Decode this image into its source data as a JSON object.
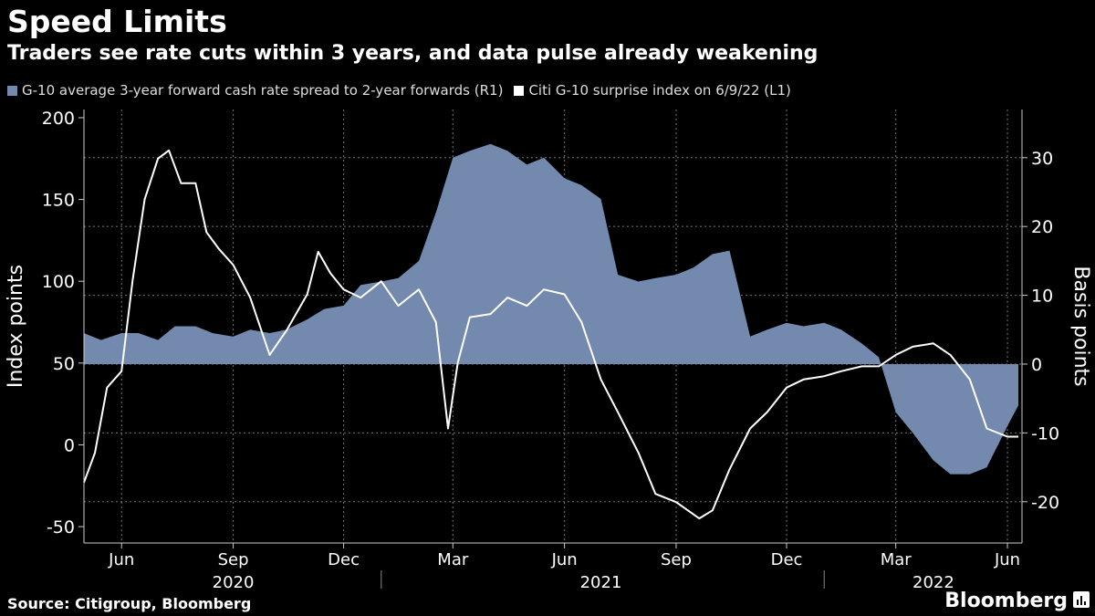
{
  "header": {
    "title": "Speed Limits",
    "subtitle": "Traders see rate cuts within 3 years, and data pulse already weakening"
  },
  "footer": {
    "source": "Source: Citigroup, Bloomberg",
    "brand": "Bloomberg"
  },
  "colors": {
    "area": "#7389ad",
    "line": "#ffffff",
    "grid": "#777777",
    "background": "#000000"
  },
  "chart_data": {
    "type": "area",
    "left_axis": {
      "label": "Index points",
      "range": [
        -60,
        205
      ],
      "ticks": [
        200,
        150,
        100,
        50,
        0,
        -50
      ]
    },
    "right_axis": {
      "label": "Basis points",
      "range": [
        -26,
        37
      ],
      "ticks": [
        30,
        20,
        10,
        0,
        -10,
        -20
      ]
    },
    "x_axis": {
      "range": [
        "2020-05-01",
        "2022-06-13"
      ],
      "month_ticks": [
        {
          "date": "2020-06-01",
          "label": "Jun"
        },
        {
          "date": "2020-09-01",
          "label": "Sep"
        },
        {
          "date": "2020-12-01",
          "label": "Dec"
        },
        {
          "date": "2021-03-01",
          "label": "Mar"
        },
        {
          "date": "2021-06-01",
          "label": "Jun"
        },
        {
          "date": "2021-09-01",
          "label": "Sep"
        },
        {
          "date": "2021-12-01",
          "label": "Dec"
        },
        {
          "date": "2022-03-01",
          "label": "Mar"
        },
        {
          "date": "2022-06-01",
          "label": "Jun"
        }
      ],
      "year_labels": [
        {
          "date": "2020-09-01",
          "label": "2020"
        },
        {
          "date": "2021-07-01",
          "label": "2021"
        },
        {
          "date": "2022-04-01",
          "label": "2022"
        }
      ],
      "year_dividers": [
        "2021-01-01",
        "2022-01-01"
      ]
    },
    "grid": true,
    "series": [
      {
        "name": "G-10 average 3-year forward cash rate spread to 2-year forwards (R1)",
        "axis": "right",
        "type": "area",
        "x": [
          "2020-05-01",
          "2020-05-15",
          "2020-06-01",
          "2020-06-15",
          "2020-07-01",
          "2020-07-15",
          "2020-08-01",
          "2020-08-15",
          "2020-09-01",
          "2020-09-15",
          "2020-10-01",
          "2020-10-15",
          "2020-11-01",
          "2020-11-15",
          "2020-12-01",
          "2020-12-15",
          "2021-01-01",
          "2021-01-15",
          "2021-02-01",
          "2021-02-15",
          "2021-03-01",
          "2021-03-15",
          "2021-04-01",
          "2021-04-15",
          "2021-05-01",
          "2021-05-15",
          "2021-06-01",
          "2021-06-15",
          "2021-07-01",
          "2021-07-15",
          "2021-08-01",
          "2021-08-15",
          "2021-09-01",
          "2021-09-15",
          "2021-10-01",
          "2021-10-15",
          "2021-11-01",
          "2021-11-15",
          "2021-12-01",
          "2021-12-15",
          "2022-01-01",
          "2022-01-15",
          "2022-02-01",
          "2022-02-15",
          "2022-03-01",
          "2022-03-15",
          "2022-04-01",
          "2022-04-15",
          "2022-05-01",
          "2022-05-15",
          "2022-06-01",
          "2022-06-10"
        ],
        "values": [
          4.5,
          3.5,
          4.5,
          4.5,
          3.5,
          5.5,
          5.5,
          4.5,
          4,
          5,
          4.5,
          5,
          6.5,
          8,
          8.5,
          11.5,
          12,
          12.5,
          15,
          22,
          30,
          31,
          32,
          31,
          29,
          30,
          27,
          26,
          24,
          13,
          12,
          12.5,
          13,
          14,
          16,
          16.5,
          4,
          5,
          6,
          5.5,
          6,
          5,
          3,
          1,
          -7,
          -10,
          -14,
          -16,
          -16,
          -15,
          -9,
          -6
        ]
      },
      {
        "name": "Citi G-10 surprise index on 6/9/22 (L1)",
        "axis": "left",
        "type": "line",
        "x": [
          "2020-05-01",
          "2020-05-10",
          "2020-05-20",
          "2020-06-01",
          "2020-06-10",
          "2020-06-20",
          "2020-07-01",
          "2020-07-10",
          "2020-07-20",
          "2020-08-01",
          "2020-08-10",
          "2020-08-20",
          "2020-09-01",
          "2020-09-15",
          "2020-10-01",
          "2020-10-15",
          "2020-11-01",
          "2020-11-10",
          "2020-11-20",
          "2020-12-01",
          "2020-12-15",
          "2021-01-01",
          "2021-01-15",
          "2021-02-01",
          "2021-02-15",
          "2021-02-25",
          "2021-03-05",
          "2021-03-15",
          "2021-04-01",
          "2021-04-15",
          "2021-05-01",
          "2021-05-15",
          "2021-06-01",
          "2021-06-15",
          "2021-07-01",
          "2021-07-15",
          "2021-08-01",
          "2021-08-15",
          "2021-09-01",
          "2021-09-20",
          "2021-10-01",
          "2021-10-15",
          "2021-11-01",
          "2021-11-15",
          "2021-12-01",
          "2021-12-15",
          "2022-01-01",
          "2022-01-15",
          "2022-02-01",
          "2022-02-15",
          "2022-03-01",
          "2022-03-15",
          "2022-04-01",
          "2022-04-15",
          "2022-05-01",
          "2022-05-15",
          "2022-06-01",
          "2022-06-10"
        ],
        "values": [
          -23,
          -5,
          35,
          45,
          100,
          150,
          175,
          180,
          160,
          160,
          130,
          120,
          110,
          90,
          55,
          70,
          92,
          118,
          105,
          95,
          90,
          100,
          85,
          95,
          75,
          10,
          50,
          78,
          80,
          90,
          85,
          95,
          92,
          75,
          40,
          20,
          -5,
          -30,
          -35,
          -45,
          -40,
          -15,
          10,
          20,
          35,
          40,
          42,
          45,
          48,
          48,
          55,
          60,
          62,
          55,
          40,
          10,
          5,
          5
        ]
      }
    ]
  }
}
